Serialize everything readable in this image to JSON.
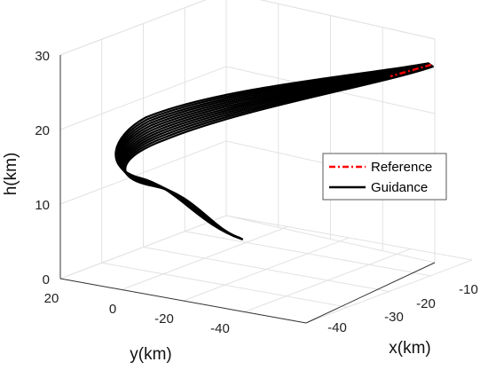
{
  "chart_data": {
    "type": "line3d",
    "zlabel": "h(km)",
    "ylabel": "y(km)",
    "xlabel": "x(km)",
    "z_ticks": [
      "0",
      "10",
      "20",
      "30"
    ],
    "y_ticks": [
      "20",
      "0",
      "-20",
      "-40"
    ],
    "x_ticks": [
      "-40",
      "-30",
      "-20",
      "-10"
    ],
    "grid": true,
    "legend_position": "right",
    "legend": [
      {
        "name": "Reference",
        "color": "#ff0000",
        "style": "dash-dot"
      },
      {
        "name": "Guidance",
        "color": "#000000",
        "style": "solid"
      }
    ]
  }
}
